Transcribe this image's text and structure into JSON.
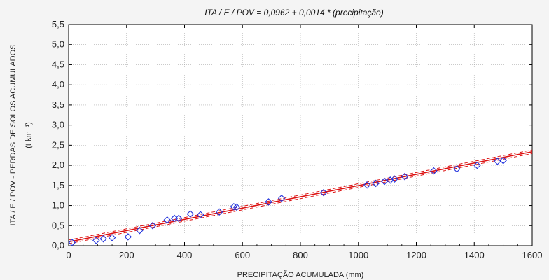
{
  "chart_data": {
    "type": "scatter",
    "title": "ITA / E / POV = 0,0962 + 0,0014 * (precipitação)",
    "xlabel": "PRECIPITAÇÃO ACUMULADA (mm)",
    "ylabel": "ITA / E / POV - PERDAS DE SOLOS ACUMULADOS",
    "ylabel_unit": "(t km⁻¹)",
    "xlim": [
      0,
      1600
    ],
    "ylim": [
      0,
      5.5
    ],
    "x_ticks": [
      0,
      200,
      400,
      600,
      800,
      1000,
      1200,
      1400,
      1600
    ],
    "y_ticks": [
      0,
      0.5,
      1.0,
      1.5,
      2.0,
      2.5,
      3.0,
      3.5,
      4.0,
      4.5,
      5.0,
      5.5
    ],
    "y_tick_labels": [
      "0,0",
      "0,5",
      "1,0",
      "1,5",
      "2,0",
      "2,5",
      "3,0",
      "3,5",
      "4,0",
      "4,5",
      "5,0",
      "5,5"
    ],
    "x_tick_labels": [
      "0",
      "200",
      "400",
      "600",
      "800",
      "1000",
      "1200",
      "1400",
      "1600"
    ],
    "grid": true,
    "series": [
      {
        "points": [
          [
            12,
            0.08
          ],
          [
            95,
            0.13
          ],
          [
            120,
            0.17
          ],
          [
            150,
            0.2
          ],
          [
            205,
            0.22
          ],
          [
            245,
            0.38
          ],
          [
            290,
            0.5
          ],
          [
            340,
            0.64
          ],
          [
            365,
            0.68
          ],
          [
            380,
            0.68
          ],
          [
            420,
            0.79
          ],
          [
            455,
            0.77
          ],
          [
            520,
            0.84
          ],
          [
            570,
            0.97
          ],
          [
            580,
            0.96
          ],
          [
            690,
            1.09
          ],
          [
            735,
            1.18
          ],
          [
            880,
            1.32
          ],
          [
            1030,
            1.51
          ],
          [
            1060,
            1.55
          ],
          [
            1090,
            1.6
          ],
          [
            1110,
            1.63
          ],
          [
            1125,
            1.66
          ],
          [
            1160,
            1.72
          ],
          [
            1260,
            1.86
          ],
          [
            1340,
            1.91
          ],
          [
            1410,
            2.0
          ],
          [
            1480,
            2.1
          ],
          [
            1500,
            2.12
          ]
        ],
        "marker": "diamond",
        "color": "#2233dd"
      }
    ],
    "fit": {
      "intercept": 0.0962,
      "slope": 0.0014,
      "x_range": [
        0,
        1600
      ],
      "color": "#dd1111",
      "confidence_band": 0.045
    }
  }
}
